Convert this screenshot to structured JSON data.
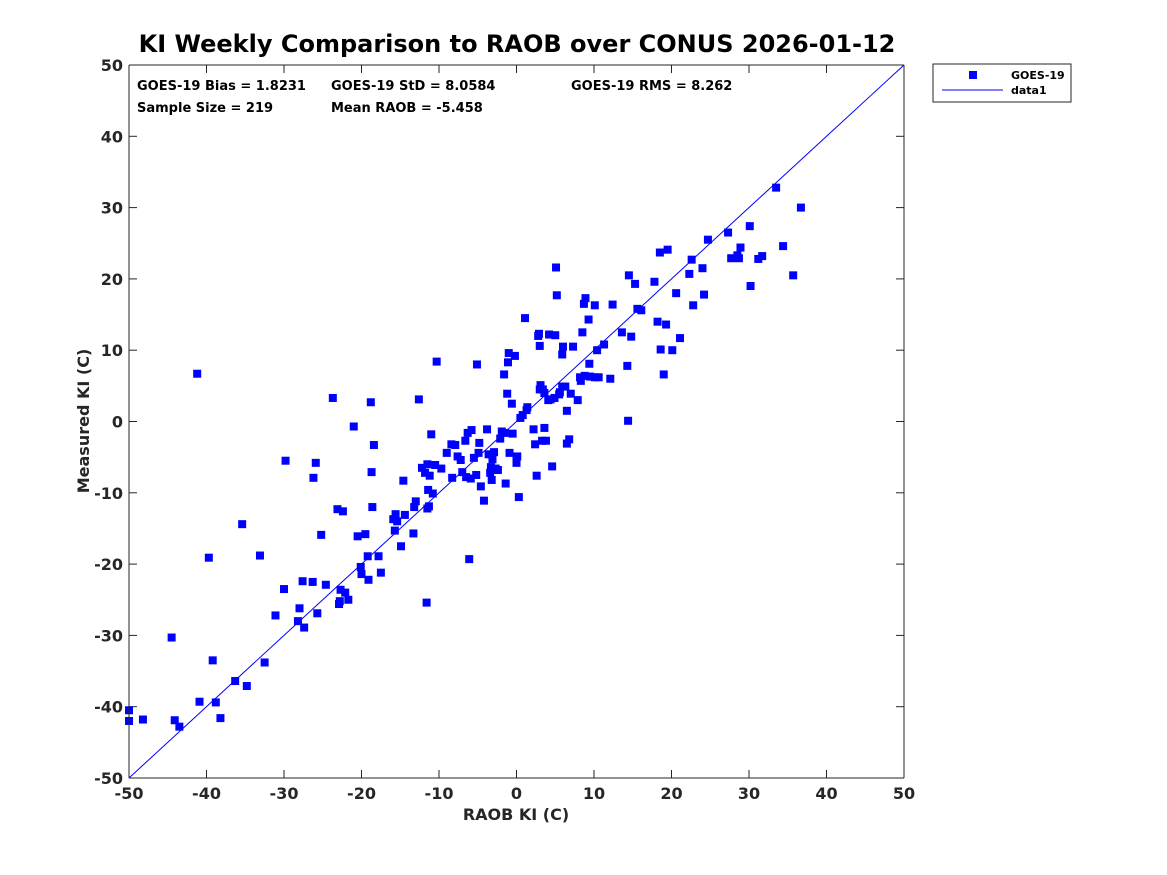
{
  "chart_data": {
    "type": "scatter",
    "title": "KI Weekly Comparison to RAOB over CONUS 2026-01-12",
    "xlabel": "RAOB KI (C)",
    "ylabel": "Measured KI (C)",
    "xlim": [
      -50,
      50
    ],
    "ylim": [
      -50,
      50
    ],
    "xticks": [
      -50,
      -40,
      -30,
      -20,
      -10,
      0,
      10,
      20,
      30,
      40,
      50
    ],
    "yticks": [
      -50,
      -40,
      -30,
      -20,
      -10,
      0,
      10,
      20,
      30,
      40,
      50
    ],
    "grid": false,
    "legend_position": "outside-top-right",
    "stats": [
      "GOES-19 Bias = 1.8231",
      "GOES-19 StD = 8.0584",
      "GOES-19 RMS = 8.262",
      "Sample Size = 219",
      "Mean RAOB = -5.458"
    ],
    "colors": {
      "marker": "#0000ff",
      "line": "#0000ff"
    },
    "series": [
      {
        "name": "GOES-19",
        "kind": "scatter",
        "marker": "square",
        "points": [
          [
            -50,
            -40.5
          ],
          [
            -50,
            -42
          ],
          [
            -48.2,
            -41.8
          ],
          [
            -44.5,
            -30.3
          ],
          [
            -44.1,
            -41.9
          ],
          [
            -43.5,
            -42.8
          ],
          [
            -41.2,
            6.7
          ],
          [
            -40.9,
            -39.3
          ],
          [
            -39.7,
            -19.1
          ],
          [
            -39.2,
            -33.5
          ],
          [
            -38.8,
            -39.4
          ],
          [
            -38.2,
            -41.6
          ],
          [
            -36.3,
            -36.4
          ],
          [
            -35.4,
            -14.4
          ],
          [
            -34.8,
            -37.1
          ],
          [
            -33.1,
            -18.8
          ],
          [
            -32.5,
            -33.8
          ],
          [
            -31.1,
            -27.2
          ],
          [
            -30,
            -23.5
          ],
          [
            -29.8,
            -5.5
          ],
          [
            -28.2,
            -28
          ],
          [
            -28,
            -26.2
          ],
          [
            -27.6,
            -22.4
          ],
          [
            -27.4,
            -28.9
          ],
          [
            -26.3,
            -22.5
          ],
          [
            -26.2,
            -7.9
          ],
          [
            -25.9,
            -5.8
          ],
          [
            -25.7,
            -26.9
          ],
          [
            -25.2,
            -15.9
          ],
          [
            -24.6,
            -22.9
          ],
          [
            -23.7,
            3.3
          ],
          [
            -23.1,
            -12.3
          ],
          [
            -22.9,
            -25.6
          ],
          [
            -22.7,
            -23.6
          ],
          [
            -22.8,
            -25.2
          ],
          [
            -22.4,
            -12.6
          ],
          [
            -22.1,
            -24
          ],
          [
            -21.7,
            -25
          ],
          [
            -21,
            -0.7
          ],
          [
            -20.5,
            -16.1
          ],
          [
            -20.1,
            -20.4
          ],
          [
            -20,
            -21.4
          ],
          [
            -19.5,
            -15.8
          ],
          [
            -19.1,
            -22.2
          ],
          [
            -19.2,
            -18.9
          ],
          [
            -18.8,
            2.7
          ],
          [
            -18.7,
            -7.1
          ],
          [
            -18.6,
            -12
          ],
          [
            -18.4,
            -3.3
          ],
          [
            -17.8,
            -18.9
          ],
          [
            -17.5,
            -21.2
          ],
          [
            -15.9,
            -13.7
          ],
          [
            -15.7,
            -15.3
          ],
          [
            -15.6,
            -13
          ],
          [
            -15.4,
            -14
          ],
          [
            -14.9,
            -17.5
          ],
          [
            -14.6,
            -8.3
          ],
          [
            -14.4,
            -13.1
          ],
          [
            -13.3,
            -15.7
          ],
          [
            -13.2,
            -12
          ],
          [
            -13,
            -11.2
          ],
          [
            -12.6,
            3.1
          ],
          [
            -12.2,
            -6.5
          ],
          [
            -11.8,
            -7.2
          ],
          [
            -11.6,
            -25.4
          ],
          [
            -11.5,
            -6
          ],
          [
            -11.5,
            -12.2
          ],
          [
            -11.4,
            -9.6
          ],
          [
            -11.3,
            -11.9
          ],
          [
            -11.2,
            -7.6
          ],
          [
            -11,
            -1.8
          ],
          [
            -10.8,
            -10.1
          ],
          [
            -10.5,
            -6.1
          ],
          [
            -10.3,
            8.4
          ],
          [
            -9.7,
            -6.6
          ],
          [
            -9,
            -4.4
          ],
          [
            -8.4,
            -3.2
          ],
          [
            -8.3,
            -7.9
          ],
          [
            -7.9,
            -3.3
          ],
          [
            -7.6,
            -4.9
          ],
          [
            -7.2,
            -5.4
          ],
          [
            -7,
            -7.1
          ],
          [
            -6.6,
            -2.7
          ],
          [
            -6.5,
            -7.8
          ],
          [
            -6.3,
            -1.6
          ],
          [
            -6.1,
            -19.3
          ],
          [
            -5.9,
            -8
          ],
          [
            -5.8,
            -1.2
          ],
          [
            -5.5,
            -5.1
          ],
          [
            -5.2,
            -7.5
          ],
          [
            -5.1,
            8
          ],
          [
            -4.9,
            -4.4
          ],
          [
            -4.8,
            -3
          ],
          [
            -4.6,
            -9.1
          ],
          [
            -4.2,
            -11.1
          ],
          [
            -3.8,
            -1.1
          ],
          [
            -3.6,
            -4.6
          ],
          [
            -3.4,
            -7.2
          ],
          [
            -3.2,
            -8.2
          ],
          [
            -3.3,
            -6.4
          ],
          [
            -3.1,
            -5.3
          ],
          [
            -2.9,
            -4.3
          ],
          [
            -2.7,
            -6.6
          ],
          [
            -2.4,
            -6.8
          ],
          [
            -2.1,
            -2.4
          ],
          [
            -1.9,
            -1.4
          ],
          [
            -1.6,
            6.6
          ],
          [
            -1.4,
            -8.7
          ],
          [
            -1.5,
            -1.6
          ],
          [
            -1.2,
            3.9
          ],
          [
            -1.1,
            8.3
          ],
          [
            -1,
            9.6
          ],
          [
            -0.9,
            -4.4
          ],
          [
            -0.6,
            2.5
          ],
          [
            -0.5,
            -1.7
          ],
          [
            -0.2,
            9.2
          ],
          [
            0,
            -5.4
          ],
          [
            0,
            -5.8
          ],
          [
            0.1,
            -4.9
          ],
          [
            0.3,
            -10.6
          ],
          [
            0.5,
            0.5
          ],
          [
            0.8,
            0.9
          ],
          [
            1.1,
            14.5
          ],
          [
            1.3,
            1.6
          ],
          [
            1.4,
            2
          ],
          [
            2.2,
            -1.1
          ],
          [
            2.4,
            -3.2
          ],
          [
            2.6,
            -7.6
          ],
          [
            2.8,
            12
          ],
          [
            2.9,
            12.3
          ],
          [
            3,
            10.6
          ],
          [
            3,
            4.5
          ],
          [
            3.1,
            5.1
          ],
          [
            3.3,
            -2.7
          ],
          [
            3.4,
            4.5
          ],
          [
            3.6,
            4
          ],
          [
            3.6,
            -0.9
          ],
          [
            3.8,
            -2.7
          ],
          [
            4.1,
            3
          ],
          [
            4.2,
            12.2
          ],
          [
            4.4,
            3.1
          ],
          [
            4.6,
            -6.3
          ],
          [
            4.9,
            3.3
          ],
          [
            5,
            12.1
          ],
          [
            5.1,
            21.6
          ],
          [
            5.2,
            17.7
          ],
          [
            5.5,
            3.8
          ],
          [
            5.6,
            4.1
          ],
          [
            5.9,
            4.9
          ],
          [
            6,
            10.5
          ],
          [
            5.9,
            9.4
          ],
          [
            6.3,
            4.9
          ],
          [
            6.5,
            1.5
          ],
          [
            6.5,
            -3.1
          ],
          [
            6.8,
            -2.5
          ],
          [
            7,
            3.9
          ],
          [
            7.3,
            10.5
          ],
          [
            7.9,
            3
          ],
          [
            8.2,
            6.2
          ],
          [
            8.3,
            5.7
          ],
          [
            8.5,
            12.5
          ],
          [
            8.7,
            16.5
          ],
          [
            8.8,
            6.4
          ],
          [
            8.9,
            17.3
          ],
          [
            9.3,
            14.3
          ],
          [
            9.4,
            8.1
          ],
          [
            9.5,
            6.3
          ],
          [
            10.1,
            6.2
          ],
          [
            10.1,
            16.3
          ],
          [
            10.4,
            10
          ],
          [
            10.6,
            6.2
          ],
          [
            11.3,
            10.8
          ],
          [
            12.1,
            6
          ],
          [
            12.4,
            16.4
          ],
          [
            13.6,
            12.5
          ],
          [
            14.3,
            7.8
          ],
          [
            14.4,
            0.1
          ],
          [
            14.5,
            20.5
          ],
          [
            14.8,
            11.9
          ],
          [
            15.3,
            19.3
          ],
          [
            15.6,
            15.8
          ],
          [
            16.1,
            15.6
          ],
          [
            17.8,
            19.6
          ],
          [
            18.2,
            14
          ],
          [
            18.5,
            23.7
          ],
          [
            18.6,
            10.1
          ],
          [
            19,
            6.6
          ],
          [
            19.3,
            13.6
          ],
          [
            19.5,
            24.1
          ],
          [
            20.1,
            10
          ],
          [
            20.6,
            18
          ],
          [
            21.1,
            11.7
          ],
          [
            22.3,
            20.7
          ],
          [
            22.6,
            22.7
          ],
          [
            22.8,
            16.3
          ],
          [
            24,
            21.5
          ],
          [
            24.2,
            17.8
          ],
          [
            24.7,
            25.5
          ],
          [
            27.3,
            26.5
          ],
          [
            27.7,
            22.9
          ],
          [
            28.5,
            23.3
          ],
          [
            28.7,
            22.9
          ],
          [
            28.9,
            24.4
          ],
          [
            30.1,
            27.4
          ],
          [
            30.2,
            19
          ],
          [
            31.2,
            22.8
          ],
          [
            31.7,
            23.2
          ],
          [
            33.5,
            32.8
          ],
          [
            34.4,
            24.6
          ],
          [
            35.7,
            20.5
          ],
          [
            36.7,
            30
          ]
        ]
      },
      {
        "name": "data1",
        "kind": "line",
        "x": [
          -50,
          50
        ],
        "y": [
          -50,
          50
        ]
      }
    ]
  }
}
